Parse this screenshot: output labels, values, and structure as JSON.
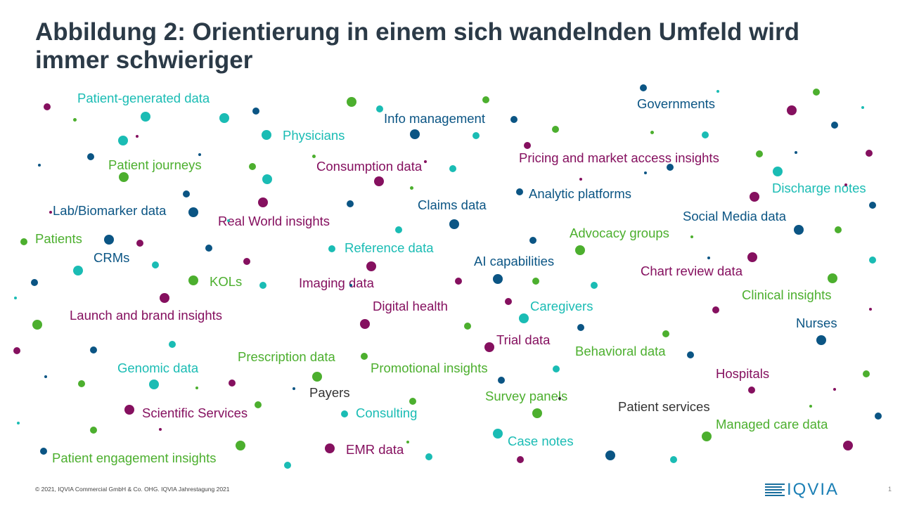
{
  "title": "Abbildung 2: Orientierung in einem sich wandelnden Umfeld wird immer schwieriger",
  "colors": {
    "teal": "#1ABCB4",
    "green": "#4CAF2E",
    "purple": "#85105F",
    "blue": "#0B5584",
    "dark": "#333333"
  },
  "labels": [
    "Patient-generated data",
    "Physicians",
    "Info management",
    "Governments",
    "Patient journeys",
    "Consumption data",
    "Pricing and market access insights",
    "Analytic platforms",
    "Discharge notes",
    "Lab/Biomarker data",
    "Real World insights",
    "Claims data",
    "Social Media data",
    "Patients",
    "Advocacy groups",
    "CRMs",
    "Reference data",
    "AI capabilities",
    "Chart review data",
    "KOLs",
    "Imaging data",
    "Clinical insights",
    "Launch and brand insights",
    "Digital health",
    "Caregivers",
    "Nurses",
    "Trial data",
    "Behavioral data",
    "Prescription data",
    "Genomic data",
    "Promotional insights",
    "Hospitals",
    "Payers",
    "Survey panels",
    "Patient services",
    "Scientific Services",
    "Consulting",
    "Managed care data",
    "Case notes",
    "EMR data",
    "Patient engagement insights"
  ],
  "footer": "© 2021, IQVIA Commercial GmbH & Co. OHG. IQVIA Jahrestagung 2021",
  "logo": "IQVIA",
  "page_number": "1"
}
